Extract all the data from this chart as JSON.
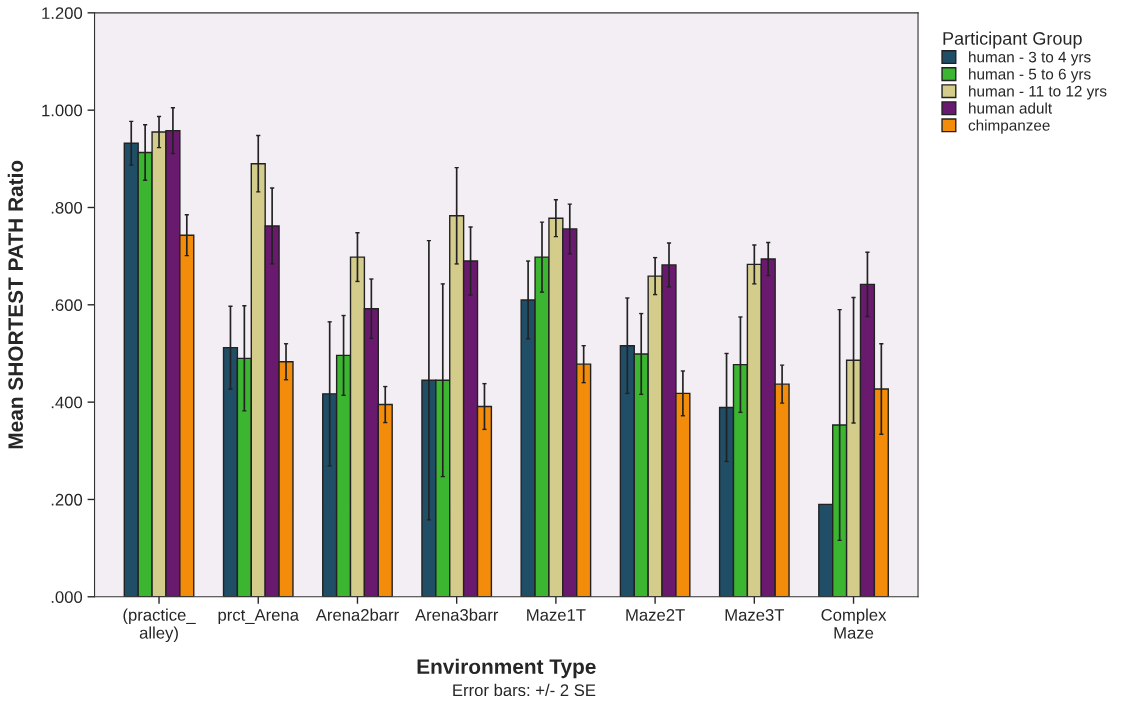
{
  "chart_data": {
    "type": "bar",
    "xlabel": "Environment Type",
    "ylabel": "Mean SHORTEST PATH Ratio",
    "legend_title": "Participant Group",
    "categories": [
      "(practice_\nalley)",
      "prct_Arena",
      "Arena2barr",
      "Arena3barr",
      "Maze1T",
      "Maze2T",
      "Maze3T",
      "Complex\nMaze"
    ],
    "series": [
      {
        "name": "human - 3 to 4 yrs",
        "color": "#1f4e66",
        "values": [
          0.932,
          0.512,
          0.417,
          0.445,
          0.61,
          0.516,
          0.389,
          0.19
        ],
        "errors": [
          0.045,
          0.085,
          0.148,
          0.287,
          0.08,
          0.098,
          0.111,
          null
        ]
      },
      {
        "name": "human - 5 to 6 yrs",
        "color": "#3cb531",
        "values": [
          0.913,
          0.49,
          0.496,
          0.445,
          0.698,
          0.499,
          0.477,
          0.353
        ],
        "errors": [
          0.057,
          0.108,
          0.082,
          0.198,
          0.072,
          0.083,
          0.098,
          0.237
        ]
      },
      {
        "name": "human - 11 to 12 yrs",
        "color": "#d4cc8a",
        "values": [
          0.955,
          0.89,
          0.698,
          0.783,
          0.778,
          0.659,
          0.683,
          0.486
        ],
        "errors": [
          0.032,
          0.058,
          0.05,
          0.099,
          0.038,
          0.038,
          0.04,
          0.129
        ]
      },
      {
        "name": "human adult",
        "color": "#6a1a6e",
        "values": [
          0.958,
          0.762,
          0.592,
          0.69,
          0.756,
          0.682,
          0.694,
          0.642
        ],
        "errors": [
          0.047,
          0.078,
          0.061,
          0.07,
          0.051,
          0.045,
          0.034,
          0.066
        ]
      },
      {
        "name": "chimpanzee",
        "color": "#f28c0a",
        "values": [
          0.743,
          0.483,
          0.395,
          0.391,
          0.478,
          0.418,
          0.437,
          0.427
        ],
        "errors": [
          0.042,
          0.037,
          0.037,
          0.047,
          0.038,
          0.046,
          0.039,
          0.093
        ]
      }
    ],
    "ylim": [
      0,
      1.2
    ],
    "yticks": [
      {
        "value": 0,
        "label": ".000"
      },
      {
        "value": 0.2,
        "label": ".200"
      },
      {
        "value": 0.4,
        "label": ".400"
      },
      {
        "value": 0.6,
        "label": ".600"
      },
      {
        "value": 0.8,
        "label": ".800"
      },
      {
        "value": 1.0,
        "label": "1.000"
      },
      {
        "value": 1.2,
        "label": "1.200"
      }
    ],
    "grid": false,
    "legend": "top right",
    "annotations": [
      "Error bars: +/- 2 SE"
    ]
  }
}
